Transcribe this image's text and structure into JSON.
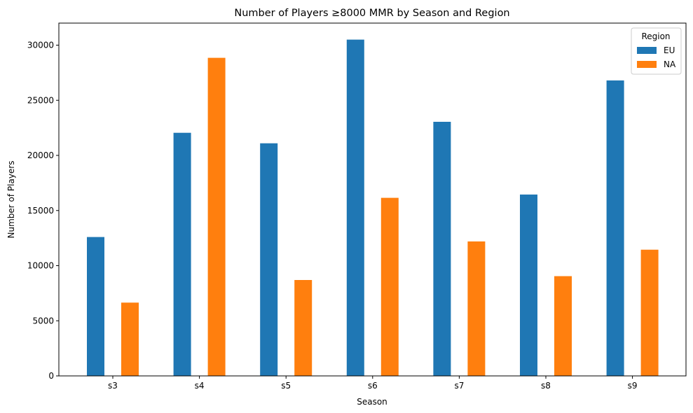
{
  "chart_data": {
    "type": "bar",
    "title": "Number of Players ≥8000 MMR by Season and Region",
    "xlabel": "Season",
    "ylabel": "Number of Players",
    "categories": [
      "s3",
      "s4",
      "s5",
      "s6",
      "s7",
      "s8",
      "s9"
    ],
    "series": [
      {
        "name": "EU",
        "color": "#1f77b4",
        "values": [
          12600,
          22050,
          21100,
          30500,
          23050,
          16450,
          26800
        ]
      },
      {
        "name": "NA",
        "color": "#ff7f0e",
        "values": [
          6650,
          28850,
          8700,
          16150,
          12200,
          9050,
          11450
        ]
      }
    ],
    "ylim": [
      0,
      32000
    ],
    "yticks": [
      0,
      5000,
      10000,
      15000,
      20000,
      25000,
      30000
    ],
    "legend": {
      "title": "Region",
      "placement": "top-right"
    },
    "grid": false
  }
}
